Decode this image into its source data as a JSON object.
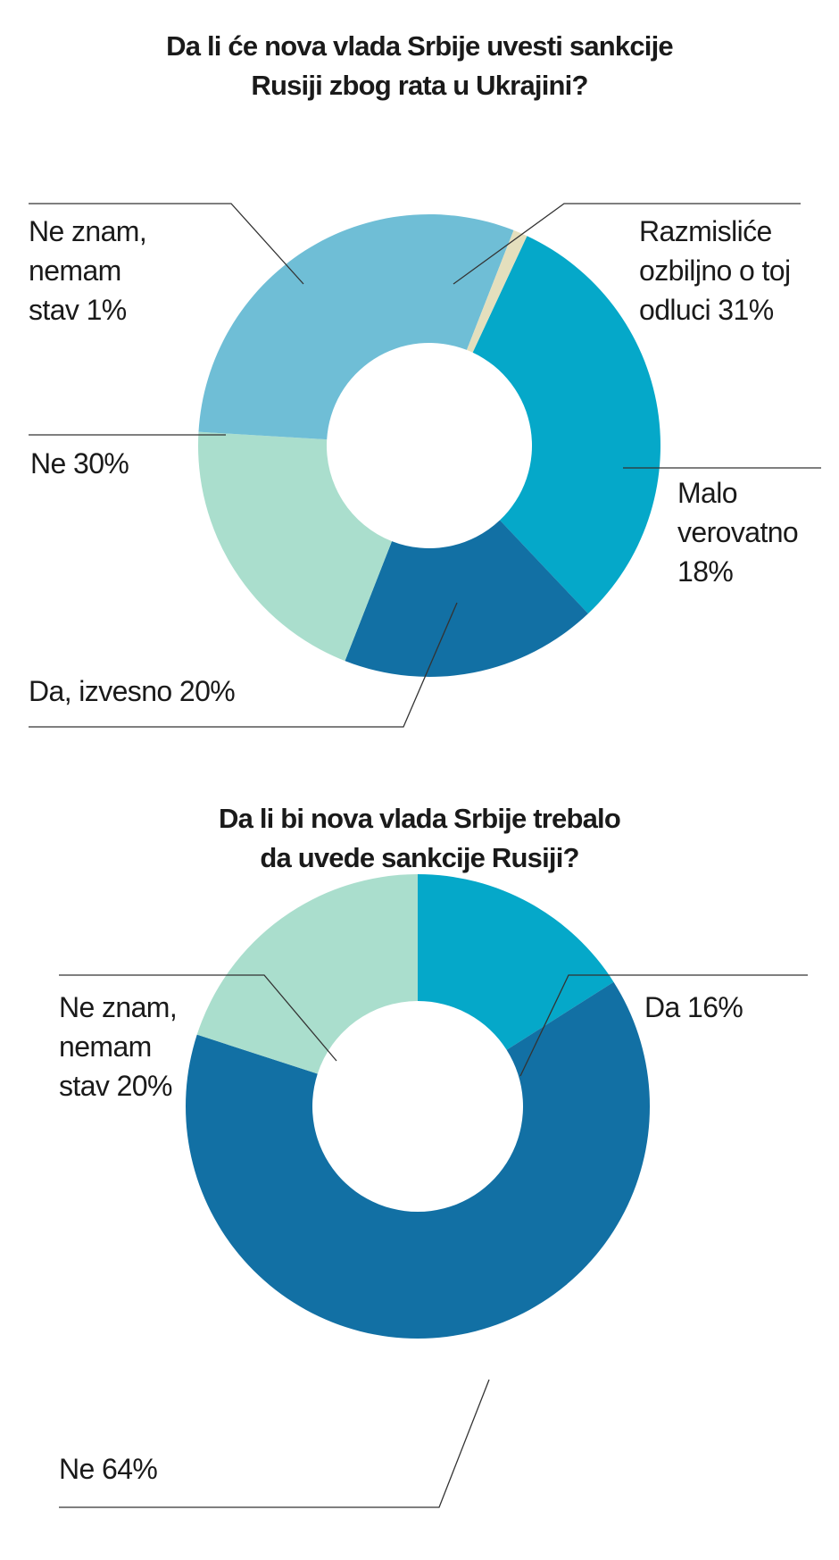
{
  "chart_data": [
    {
      "type": "pie",
      "title": [
        "Da li će nova vlada Srbije uvesti sankcije",
        "Rusiji zbog rata u Ukrajini?"
      ],
      "categories": [
        "Razmisliće ozbiljno o toj odluci",
        "Malo verovatno",
        "Da, izvesno",
        "Ne",
        "Ne znam, nemam stav"
      ],
      "values": [
        31,
        18,
        20,
        30,
        1
      ],
      "unit": "%",
      "labels": [
        [
          "Razmisliće",
          "ozbiljno o toj",
          "odluci 31%"
        ],
        [
          "Malo",
          "verovatno",
          "18%"
        ],
        [
          "Da, izvesno 20%"
        ],
        [
          "Ne 30%"
        ],
        [
          "Ne znam,",
          "nemam",
          "stav 1%"
        ]
      ],
      "colors": [
        "#05a8c9",
        "#1270a4",
        "#aadecd",
        "#6fbed6",
        "#e4dfbd"
      ]
    },
    {
      "type": "pie",
      "title": [
        "Da li bi nova vlada Srbije trebalo",
        "da uvede sankcije Rusiji?"
      ],
      "categories": [
        "Da",
        "Ne",
        "Ne znam, nemam stav"
      ],
      "values": [
        16,
        64,
        20
      ],
      "unit": "%",
      "labels": [
        [
          "Da 16%"
        ],
        [
          "Ne 64%"
        ],
        [
          "Ne znam,",
          "nemam",
          "stav 20%"
        ]
      ],
      "colors": [
        "#05a8c9",
        "#1270a4",
        "#aadecd"
      ]
    }
  ]
}
